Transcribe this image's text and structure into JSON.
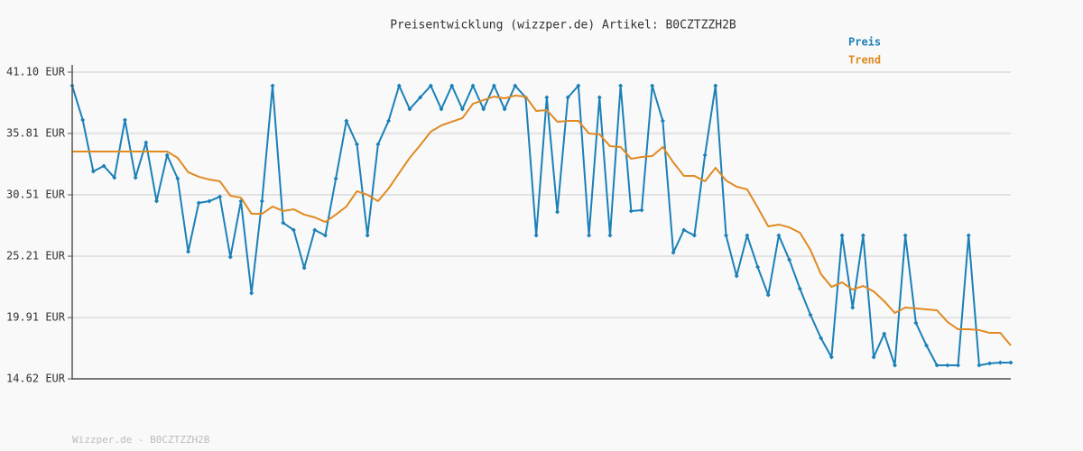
{
  "chart_data": {
    "type": "line",
    "title": "Preisentwicklung (wizzper.de) Artikel: B0CZTZZH2B",
    "footer": "Wizzper.de - B0CZTZZH2B",
    "legend": "top-right",
    "grid": true,
    "categories": [
      null,
      null,
      null,
      null,
      null,
      null,
      null,
      null,
      null,
      null,
      null,
      null,
      null,
      null,
      null,
      null,
      null,
      null,
      null,
      null,
      null,
      null,
      null,
      null,
      null,
      null,
      null,
      null,
      null,
      null,
      null,
      null,
      null,
      null,
      null,
      null,
      null,
      null,
      null,
      null,
      null,
      null,
      null,
      null,
      null,
      null,
      null,
      null,
      null,
      null,
      null,
      null,
      null,
      null,
      null,
      null,
      null,
      null,
      null,
      null,
      null,
      null,
      null,
      null,
      null,
      null,
      null,
      null,
      null,
      null,
      null,
      null,
      null,
      null,
      null,
      null,
      null,
      null,
      null,
      null,
      null,
      null,
      null,
      null,
      null,
      null,
      null,
      null,
      null,
      null
    ],
    "ylim": [
      14.62,
      41.1
    ],
    "yticks": [
      {
        "value": 14.62,
        "label": "14.62 EUR"
      },
      {
        "value": 19.91,
        "label": "19.91 EUR"
      },
      {
        "value": 25.21,
        "label": "25.21 EUR"
      },
      {
        "value": 30.51,
        "label": "30.51 EUR"
      },
      {
        "value": 35.81,
        "label": "35.81 EUR"
      },
      {
        "value": 41.1,
        "label": "41.10 EUR"
      }
    ],
    "series": [
      {
        "name": "Preis",
        "color": "#1b80b8",
        "markers": true,
        "values": [
          39.93,
          36.97,
          32.53,
          33.0,
          31.99,
          36.97,
          31.99,
          35.03,
          29.96,
          33.93,
          31.91,
          25.6,
          29.81,
          29.96,
          30.35,
          25.13,
          29.96,
          22.02,
          29.96,
          39.93,
          28.09,
          27.47,
          24.2,
          27.47,
          27.0,
          31.91,
          36.89,
          34.87,
          27.0,
          34.87,
          36.89,
          39.93,
          37.91,
          38.92,
          39.93,
          37.91,
          39.93,
          37.91,
          39.93,
          37.91,
          39.93,
          37.91,
          39.93,
          38.92,
          27.0,
          38.92,
          29.03,
          38.92,
          39.93,
          27.0,
          38.92,
          27.0,
          39.93,
          29.11,
          29.18,
          39.93,
          36.89,
          25.52,
          27.47,
          27.0,
          33.93,
          39.93,
          27.0,
          23.5,
          27.0,
          24.28,
          21.86,
          27.0,
          24.9,
          22.41,
          20.15,
          18.13,
          16.49,
          27.0,
          20.77,
          27.0,
          16.49,
          18.51,
          15.79,
          27.0,
          19.45,
          17.5,
          15.79,
          15.79,
          15.79,
          27.0,
          15.79,
          15.95,
          16.02,
          16.02
        ]
      },
      {
        "name": "Trend",
        "color": "#e08a22",
        "markers": false,
        "values": [
          34.25,
          34.25,
          34.25,
          34.25,
          34.25,
          34.25,
          34.25,
          34.25,
          34.25,
          34.25,
          33.7,
          32.46,
          32.07,
          31.83,
          31.68,
          30.43,
          30.27,
          28.87,
          28.87,
          29.5,
          29.11,
          29.26,
          28.8,
          28.56,
          28.17,
          28.8,
          29.5,
          30.82,
          30.51,
          29.96,
          31.05,
          32.38,
          33.7,
          34.79,
          35.96,
          36.5,
          36.82,
          37.13,
          38.37,
          38.69,
          38.99,
          38.84,
          39.08,
          38.99,
          37.75,
          37.83,
          36.82,
          36.89,
          36.89,
          35.8,
          35.73,
          34.71,
          34.64,
          33.62,
          33.78,
          33.86,
          34.64,
          33.31,
          32.14,
          32.14,
          31.68,
          32.84,
          31.75,
          31.21,
          30.98,
          29.42,
          27.78,
          27.94,
          27.7,
          27.24,
          25.76,
          23.66,
          22.56,
          22.95,
          22.33,
          22.64,
          22.17,
          21.32,
          20.31,
          20.77,
          20.7,
          20.62,
          20.54,
          19.53,
          18.9,
          18.9,
          18.83,
          18.59,
          18.59,
          17.5
        ]
      }
    ]
  }
}
